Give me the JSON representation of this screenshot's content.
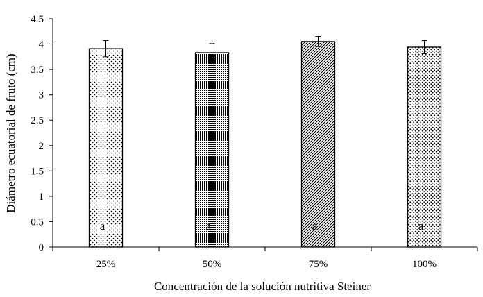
{
  "chart_data": {
    "type": "bar",
    "title": "",
    "xlabel": "Concentración de la solución nutritiva Steiner",
    "ylabel": "Diámetro ecuatorial de fruto (cm)",
    "categories": [
      "25%",
      "50%",
      "75%",
      "100%"
    ],
    "values": [
      3.91,
      3.83,
      4.05,
      3.94
    ],
    "errors": [
      0.16,
      0.18,
      0.1,
      0.13
    ],
    "letters": [
      "a",
      "a",
      "a",
      "a"
    ],
    "patterns": [
      "sparse-dots",
      "dense-dots",
      "diagonal-lines",
      "diamond-dots"
    ],
    "ylim": [
      0,
      4.5
    ],
    "yticks": [
      0,
      0.5,
      1,
      1.5,
      2,
      2.5,
      3,
      3.5,
      4,
      4.5
    ],
    "ytick_labels": [
      "0",
      "0.5",
      "1",
      "1.5",
      "2",
      "2.5",
      "3",
      "3.5",
      "4",
      "4.5"
    ],
    "grid": false,
    "bar_color": "#000000",
    "background": "#ffffff"
  }
}
